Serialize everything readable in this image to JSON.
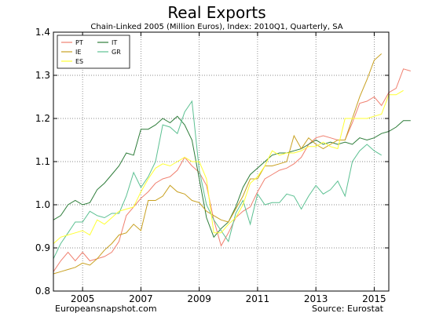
{
  "chart_data": {
    "type": "line",
    "title": "Real Exports",
    "subtitle": "Chain-Linked 2005 (Million Euros), Index: 2010Q1, Quarterly, SA",
    "footer_left": "Europeansnapshot.com",
    "footer_right": "Source: Eurostat",
    "xlim": [
      2004.0,
      2015.5
    ],
    "ylim": [
      0.8,
      1.4
    ],
    "x_ticks": [
      2005,
      2007,
      2009,
      2011,
      2013,
      2015
    ],
    "x_tick_labels": [
      "2005",
      "2007",
      "2009",
      "2011",
      "2013",
      "2015"
    ],
    "y_ticks": [
      0.8,
      0.9,
      1.0,
      1.1,
      1.2,
      1.3,
      1.4
    ],
    "y_tick_labels": [
      "0.8",
      "0.9",
      "1.0",
      "1.1",
      "1.2",
      "1.3",
      "1.4"
    ],
    "grid": true,
    "legend_position": "top-left",
    "legend_columns": 2,
    "x_start": 2004.0,
    "x_step": 0.25,
    "series": [
      {
        "name": "PT",
        "color": "#f08070",
        "values": [
          0.845,
          0.87,
          0.89,
          0.87,
          0.89,
          0.87,
          0.875,
          0.88,
          0.89,
          0.915,
          0.975,
          0.995,
          1.015,
          1.03,
          1.05,
          1.06,
          1.065,
          1.08,
          1.11,
          1.09,
          1.075,
          1.045,
          0.965,
          0.905,
          0.935,
          0.97,
          0.985,
          0.995,
          1.03,
          1.06,
          1.07,
          1.08,
          1.085,
          1.095,
          1.11,
          1.14,
          1.155,
          1.16,
          1.155,
          1.15,
          1.15,
          1.19,
          1.235,
          1.24,
          1.25,
          1.23,
          1.26,
          1.27,
          1.315,
          1.31
        ]
      },
      {
        "name": "IT",
        "color": "#2e7d3a",
        "values": [
          0.965,
          0.975,
          1.0,
          1.01,
          1.0,
          1.005,
          1.035,
          1.05,
          1.07,
          1.09,
          1.12,
          1.115,
          1.175,
          1.175,
          1.185,
          1.2,
          1.19,
          1.205,
          1.185,
          1.15,
          1.06,
          0.97,
          0.925,
          0.945,
          0.96,
          0.995,
          1.04,
          1.07,
          1.085,
          1.1,
          1.115,
          1.12,
          1.12,
          1.125,
          1.13,
          1.14,
          1.15,
          1.14,
          1.145,
          1.14,
          1.145,
          1.14,
          1.155,
          1.15,
          1.155,
          1.165,
          1.17,
          1.18,
          1.195,
          1.195
        ]
      },
      {
        "name": "IE",
        "color": "#c8a020",
        "values": [
          0.84,
          0.845,
          0.85,
          0.855,
          0.865,
          0.86,
          0.875,
          0.895,
          0.91,
          0.93,
          0.935,
          0.955,
          0.94,
          1.01,
          1.01,
          1.02,
          1.045,
          1.03,
          1.025,
          1.01,
          1.005,
          0.985,
          0.975,
          0.965,
          0.96,
          0.99,
          1.02,
          1.06,
          1.06,
          1.09,
          1.09,
          1.095,
          1.1,
          1.16,
          1.13,
          1.155,
          1.14,
          1.13,
          1.14,
          1.15,
          1.15,
          1.2,
          1.25,
          1.29,
          1.335,
          1.35
        ]
      },
      {
        "name": "GR",
        "color": "#5cc092",
        "values": [
          0.875,
          0.91,
          0.935,
          0.96,
          0.96,
          0.985,
          0.975,
          0.97,
          0.98,
          0.98,
          1.02,
          1.075,
          1.04,
          1.065,
          1.1,
          1.185,
          1.18,
          1.165,
          1.215,
          1.24,
          1.08,
          1.0,
          0.965,
          0.94,
          0.915,
          0.98,
          1.01,
          0.955,
          1.025,
          1.0,
          1.005,
          1.005,
          1.025,
          1.02,
          0.99,
          1.02,
          1.045,
          1.025,
          1.035,
          1.055,
          1.02,
          1.1,
          1.125,
          1.14,
          1.125,
          1.115
        ]
      },
      {
        "name": "ES",
        "color": "#ffff33",
        "values": [
          0.91,
          0.925,
          0.93,
          0.935,
          0.94,
          0.93,
          0.965,
          0.955,
          0.97,
          0.985,
          0.99,
          0.995,
          1.03,
          1.06,
          1.085,
          1.095,
          1.09,
          1.1,
          1.11,
          1.1,
          1.1,
          1.06,
          0.935,
          0.935,
          0.955,
          0.97,
          1.0,
          1.05,
          1.065,
          1.09,
          1.125,
          1.115,
          1.12,
          1.12,
          1.125,
          1.135,
          1.135,
          1.145,
          1.135,
          1.13,
          1.2,
          1.2,
          1.2,
          1.2,
          1.205,
          1.21,
          1.255,
          1.255,
          1.265
        ]
      }
    ]
  }
}
